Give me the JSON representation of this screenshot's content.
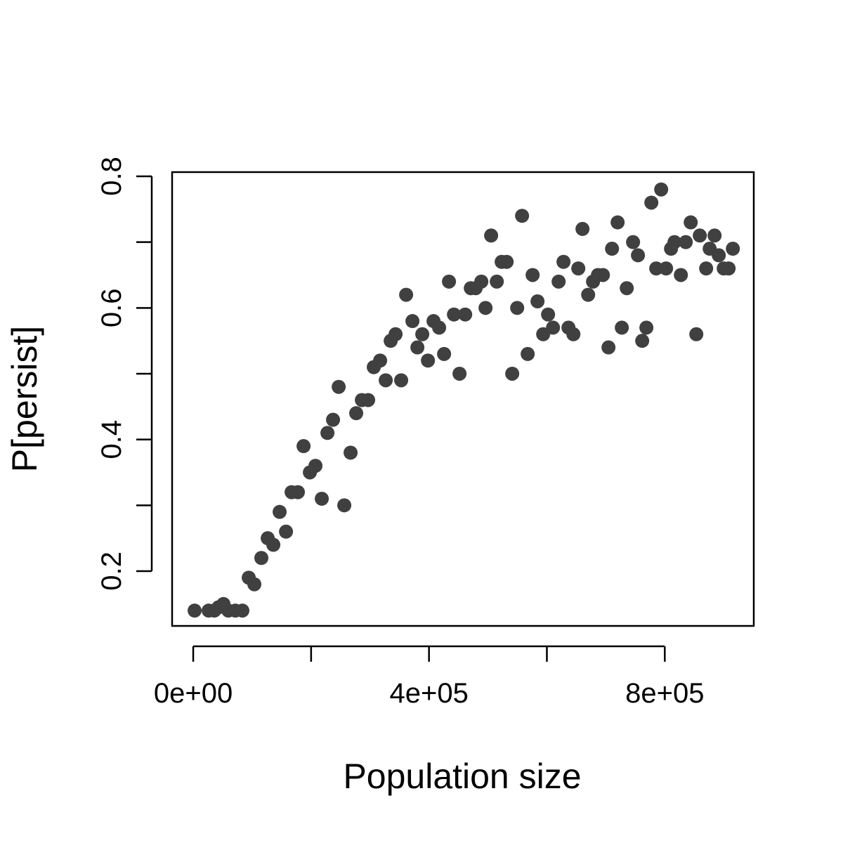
{
  "chart_data": {
    "type": "scatter",
    "x_label": "Population size",
    "y_label": "P[persist]",
    "color": "#404040",
    "xlim": [
      -35800,
      951000
    ],
    "ylim": [
      0.1167,
      0.8064
    ],
    "xticks": [
      {
        "value": 0,
        "label": "0e+00"
      },
      {
        "value": 200000,
        "label": null
      },
      {
        "value": 400000,
        "label": "4e+05"
      },
      {
        "value": 600000,
        "label": null
      },
      {
        "value": 800000,
        "label": "8e+05"
      }
    ],
    "yticks": [
      0.2,
      {
        "value": 0.3,
        "label": null
      },
      0.4,
      {
        "value": 0.5,
        "label": null
      },
      0.6,
      {
        "value": 0.7,
        "label": null
      },
      0.8
    ],
    "x": [
      2400,
      26200,
      35800,
      42900,
      51300,
      59600,
      71500,
      83400,
      94200,
      103700,
      115600,
      126400,
      135900,
      146600,
      157400,
      166900,
      177600,
      187200,
      197900,
      207400,
      218100,
      227700,
      237200,
      246800,
      256300,
      267000,
      276500,
      286100,
      296800,
      306300,
      317100,
      326600,
      335000,
      343300,
      352800,
      361200,
      371900,
      380300,
      388600,
      398200,
      407700,
      417200,
      425600,
      433900,
      442300,
      451800,
      461400,
      470900,
      479200,
      488800,
      495900,
      505400,
      515000,
      523300,
      531700,
      541200,
      549600,
      557900,
      567400,
      575800,
      584100,
      593700,
      602000,
      610400,
      619900,
      628200,
      636600,
      645000,
      653300,
      660400,
      670000,
      678300,
      686600,
      695000,
      704500,
      710500,
      720000,
      727100,
      735500,
      746200,
      754500,
      761700,
      768800,
      777200,
      785500,
      793900,
      802200,
      810600,
      816500,
      827300,
      835600,
      844000,
      853500,
      859400,
      870200,
      876200,
      884500,
      891600,
      900000,
      908300,
      915500
    ],
    "values": [
      0.14,
      0.14,
      0.14,
      0.145,
      0.15,
      0.14,
      0.14,
      0.14,
      0.19,
      0.18,
      0.22,
      0.25,
      0.24,
      0.29,
      0.26,
      0.32,
      0.32,
      0.39,
      0.35,
      0.36,
      0.31,
      0.41,
      0.43,
      0.48,
      0.3,
      0.38,
      0.44,
      0.46,
      0.46,
      0.51,
      0.52,
      0.49,
      0.55,
      0.56,
      0.49,
      0.62,
      0.58,
      0.54,
      0.56,
      0.52,
      0.58,
      0.57,
      0.53,
      0.64,
      0.59,
      0.5,
      0.59,
      0.63,
      0.63,
      0.64,
      0.6,
      0.71,
      0.64,
      0.67,
      0.67,
      0.5,
      0.6,
      0.74,
      0.53,
      0.65,
      0.61,
      0.56,
      0.59,
      0.57,
      0.64,
      0.67,
      0.57,
      0.56,
      0.66,
      0.72,
      0.62,
      0.64,
      0.65,
      0.65,
      0.54,
      0.69,
      0.73,
      0.57,
      0.63,
      0.7,
      0.68,
      0.55,
      0.57,
      0.76,
      0.66,
      0.78,
      0.66,
      0.69,
      0.7,
      0.65,
      0.7,
      0.73,
      0.56,
      0.71,
      0.66,
      0.69,
      0.71,
      0.68,
      0.66,
      0.66,
      0.69
    ]
  }
}
